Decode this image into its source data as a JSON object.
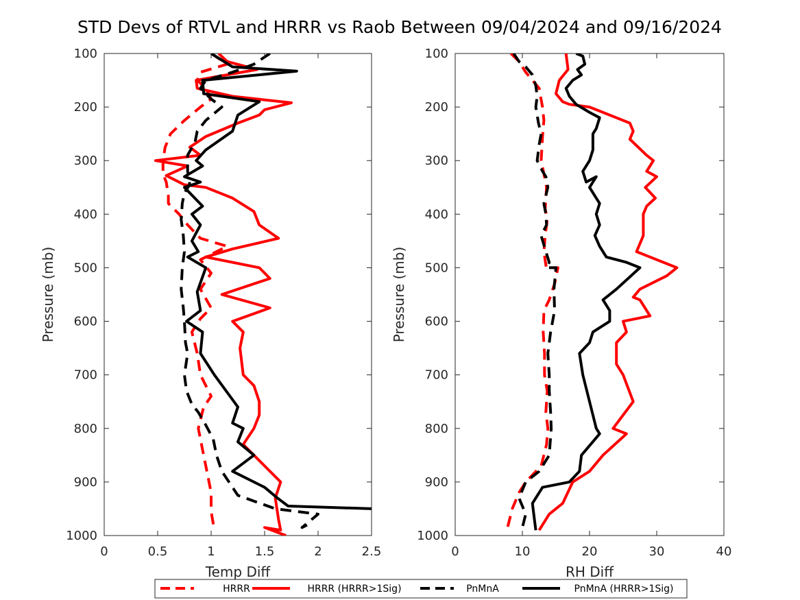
{
  "title": "STD Devs of RTVL and HRRR vs Raob Between 09/04/2024 and 09/16/2024",
  "colors": {
    "HRRR": "#ff0000",
    "PnMnA": "#000000"
  },
  "legend": {
    "placement": "bottom-center",
    "entries": [
      {
        "label": "HRRR",
        "color": "#ff0000",
        "style": "dashed"
      },
      {
        "label": "HRRR (HRRR>1Sig)",
        "color": "#ff0000",
        "style": "solid"
      },
      {
        "label": "PnMnA",
        "color": "#000000",
        "style": "dashed"
      },
      {
        "label": "PnMnA (HRRR>1Sig)",
        "color": "#000000",
        "style": "solid"
      }
    ]
  },
  "chart_data": [
    {
      "type": "line",
      "xlabel": "Temp Diff",
      "ylabel": "Pressure (mb)",
      "xlim": [
        0,
        2.5
      ],
      "ylim": [
        100,
        1000
      ],
      "y_reversed": true,
      "grid": false,
      "xticks": [
        "0",
        "0.5",
        "1",
        "1.5",
        "2",
        "2.5"
      ],
      "yticks": [
        "100",
        "200",
        "300",
        "400",
        "500",
        "600",
        "700",
        "800",
        "900",
        "1000"
      ],
      "series": [
        {
          "name": "HRRR",
          "color": "#ff0000",
          "style": "dashed",
          "x": [
            1.0,
            1.15,
            0.9,
            0.87,
            0.95,
            1.0,
            0.9,
            0.75,
            0.62,
            0.57,
            0.55,
            0.55,
            0.58,
            0.6,
            0.6,
            0.7,
            0.78,
            0.9,
            1.15,
            0.9,
            1.0,
            0.9,
            1.0,
            0.9,
            0.82,
            0.87,
            0.9,
            1.0,
            0.93,
            0.88,
            0.92,
            0.96,
            1.0,
            1.0,
            1.03
          ],
          "y": [
            100,
            120,
            135,
            150,
            165,
            185,
            200,
            225,
            250,
            275,
            300,
            325,
            340,
            365,
            380,
            400,
            420,
            445,
            460,
            485,
            510,
            540,
            575,
            595,
            620,
            660,
            700,
            740,
            760,
            800,
            840,
            880,
            920,
            955,
            990
          ]
        },
        {
          "name": "HRRR (HRRR>1Sig)",
          "color": "#ff0000",
          "style": "solid",
          "x": [
            1.07,
            1.15,
            1.43,
            0.86,
            0.87,
            1.2,
            1.75,
            1.5,
            1.45,
            1.25,
            0.95,
            0.8,
            0.9,
            0.48,
            0.78,
            0.58,
            0.75,
            0.95,
            1.2,
            1.4,
            1.45,
            1.63,
            1.2,
            0.95,
            1.45,
            1.55,
            1.1,
            1.55,
            1.2,
            1.3,
            1.27,
            1.3,
            1.4,
            1.45,
            1.45,
            1.4,
            1.3,
            1.5,
            1.65,
            1.6,
            1.63,
            1.65,
            1.5,
            1.7
          ],
          "y": [
            100,
            115,
            130,
            150,
            165,
            180,
            192,
            205,
            215,
            230,
            255,
            275,
            290,
            300,
            310,
            328,
            345,
            350,
            370,
            395,
            420,
            445,
            465,
            480,
            500,
            520,
            550,
            575,
            600,
            620,
            650,
            700,
            720,
            750,
            775,
            800,
            830,
            870,
            900,
            930,
            970,
            990,
            985,
            1000
          ]
        },
        {
          "name": "PnMnA",
          "color": "#000000",
          "style": "dashed",
          "x": [
            1.55,
            1.4,
            1.2,
            0.95,
            0.9,
            1.0,
            1.1,
            0.95,
            0.87,
            0.85,
            0.78,
            0.78,
            0.8,
            0.75,
            0.73,
            0.72,
            0.74,
            0.75,
            0.73,
            0.72,
            0.74,
            0.75,
            0.76,
            0.78,
            0.75,
            0.77,
            0.82,
            0.88,
            0.94,
            1.02,
            1.05,
            1.1,
            1.25,
            1.6,
            2.0,
            1.85,
            1.95
          ],
          "y": [
            100,
            120,
            135,
            150,
            165,
            185,
            200,
            225,
            245,
            265,
            290,
            320,
            345,
            360,
            380,
            410,
            440,
            470,
            500,
            540,
            575,
            600,
            640,
            660,
            700,
            730,
            755,
            770,
            790,
            820,
            850,
            880,
            925,
            950,
            960,
            985,
            975
          ]
        },
        {
          "name": "PnMnA (HRRR>1Sig)",
          "color": "#000000",
          "style": "solid",
          "x": [
            1.0,
            1.2,
            1.8,
            0.92,
            0.93,
            1.45,
            1.25,
            1.2,
            0.95,
            0.86,
            0.92,
            0.75,
            0.9,
            0.75,
            0.92,
            0.82,
            0.9,
            0.82,
            0.88,
            0.78,
            0.95,
            0.87,
            0.9,
            0.77,
            0.92,
            0.9,
            1.03,
            1.25,
            1.2,
            1.3,
            1.25,
            1.4,
            1.2,
            1.5,
            1.62,
            1.72,
            2.5
          ],
          "y": [
            100,
            125,
            133,
            150,
            175,
            190,
            215,
            245,
            280,
            300,
            310,
            330,
            340,
            350,
            385,
            400,
            420,
            450,
            470,
            480,
            500,
            545,
            580,
            600,
            620,
            660,
            700,
            760,
            790,
            800,
            825,
            850,
            880,
            910,
            930,
            945,
            950
          ]
        }
      ]
    },
    {
      "type": "line",
      "xlabel": "RH Diff",
      "ylabel": "Pressure (mb)",
      "xlim": [
        0,
        40
      ],
      "ylim": [
        100,
        1000
      ],
      "y_reversed": true,
      "grid": false,
      "xticks": [
        "0",
        "10",
        "20",
        "30",
        "40"
      ],
      "yticks": [
        "100",
        "200",
        "300",
        "400",
        "500",
        "600",
        "700",
        "800",
        "900",
        "1000"
      ],
      "series": [
        {
          "name": "HRRR",
          "color": "#ff0000",
          "style": "dashed",
          "x": [
            8.3,
            9.5,
            10.5,
            12.5,
            12.7,
            13.0,
            13.2,
            13.0,
            12.8,
            13.3,
            13.6,
            13.4,
            13.7,
            13.4,
            13.2,
            13.5,
            13.6,
            13.8,
            15.3,
            14.8,
            14.0,
            13.2,
            13.1,
            13.3,
            13.3,
            13.7,
            13.5,
            13.8,
            13.6,
            12.8,
            10.5,
            9.5,
            8.5,
            7.8
          ],
          "y": [
            100,
            115,
            135,
            165,
            180,
            200,
            225,
            255,
            300,
            330,
            350,
            390,
            410,
            440,
            470,
            495,
            500,
            500,
            500,
            530,
            560,
            580,
            620,
            660,
            700,
            730,
            770,
            800,
            830,
            870,
            900,
            920,
            950,
            985
          ]
        },
        {
          "name": "HRRR (HRRR>1Sig)",
          "color": "#ff0000",
          "style": "solid",
          "x": [
            16.5,
            16.8,
            15.5,
            15.0,
            16.0,
            17.0,
            20.0,
            22.0,
            26.0,
            26.5,
            26.0,
            28.5,
            29.5,
            28.5,
            30.0,
            28.3,
            29.8,
            28.5,
            28.0,
            28.0,
            27.0,
            29.0,
            33.0,
            31.5,
            27.5,
            26.5,
            27.5,
            29.0,
            25.0,
            25.5,
            24.0,
            24.0,
            25.0,
            26.5,
            23.5,
            25.5,
            22.0,
            20.0,
            17.5,
            16.0,
            14.0,
            12.5
          ],
          "y": [
            100,
            130,
            150,
            175,
            190,
            195,
            200,
            210,
            230,
            245,
            260,
            290,
            300,
            320,
            330,
            350,
            370,
            385,
            400,
            440,
            470,
            480,
            500,
            515,
            540,
            555,
            560,
            590,
            600,
            620,
            640,
            680,
            700,
            750,
            800,
            810,
            850,
            880,
            900,
            940,
            960,
            990
          ]
        },
        {
          "name": "PnMnA",
          "color": "#000000",
          "style": "dashed",
          "x": [
            8.7,
            9.5,
            10.5,
            11.5,
            12.0,
            12.2,
            12.0,
            12.4,
            12.8,
            12.5,
            12.2,
            13.0,
            13.5,
            13.8,
            13.2,
            13.5,
            13.6,
            12.8,
            13.5,
            14.0,
            13.6,
            15.0,
            14.7,
            14.8,
            14.2,
            13.8,
            14.0,
            14.0,
            14.2,
            14.3,
            14.0,
            12.5,
            10.5,
            9.5,
            10.5,
            10.0
          ],
          "y": [
            100,
            115,
            125,
            140,
            160,
            180,
            200,
            230,
            250,
            270,
            300,
            320,
            330,
            350,
            380,
            400,
            420,
            440,
            470,
            490,
            500,
            500,
            540,
            580,
            620,
            660,
            700,
            730,
            770,
            800,
            850,
            880,
            900,
            930,
            960,
            985
          ]
        },
        {
          "name": "PnMnA (HRRR>1Sig)",
          "color": "#000000",
          "style": "solid",
          "x": [
            18.0,
            19.0,
            19.3,
            18.2,
            18.8,
            17.5,
            16.5,
            17.0,
            18.0,
            20.0,
            21.5,
            21.0,
            20.5,
            20.5,
            20.0,
            19.0,
            19.5,
            21.0,
            20.0,
            21.5,
            21.0,
            21.5,
            20.8,
            21.5,
            22.0,
            22.5,
            25.5,
            27.5,
            24.0,
            22.0,
            23.0,
            23.0,
            20.5,
            20.0,
            18.5,
            19.0,
            20.0,
            21.0,
            21.5,
            18.8,
            18.5,
            17.0,
            13.0,
            11.5,
            11.8,
            12.0
          ],
          "y": [
            100,
            105,
            120,
            130,
            140,
            150,
            165,
            180,
            195,
            210,
            220,
            240,
            250,
            280,
            300,
            320,
            340,
            330,
            350,
            380,
            400,
            420,
            440,
            460,
            470,
            480,
            490,
            500,
            540,
            560,
            580,
            600,
            620,
            640,
            660,
            700,
            750,
            800,
            810,
            850,
            880,
            900,
            910,
            940,
            970,
            990
          ]
        }
      ]
    }
  ]
}
